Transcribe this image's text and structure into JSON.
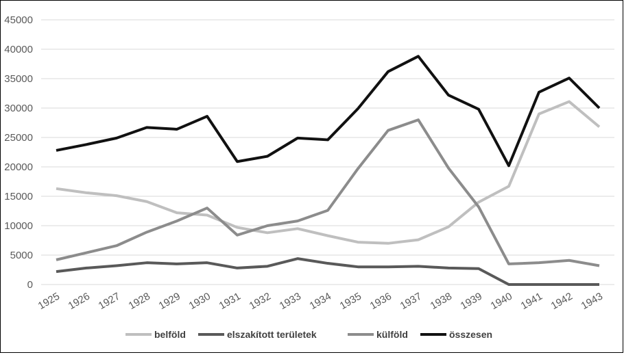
{
  "chart_data": {
    "type": "line",
    "categories": [
      "1925",
      "1926",
      "1927",
      "1928",
      "1929",
      "1930",
      "1931",
      "1932",
      "1933",
      "1934",
      "1935",
      "1936",
      "1937",
      "1938",
      "1939",
      "1940",
      "1941",
      "1942",
      "1943"
    ],
    "series": [
      {
        "name": "belföld",
        "color": "#bfbfbf",
        "values": [
          16300,
          15600,
          15100,
          14100,
          12200,
          11800,
          9700,
          8800,
          9500,
          8300,
          7200,
          7000,
          7600,
          9800,
          14000,
          16700,
          29000,
          31100,
          26800
        ]
      },
      {
        "name": "elszakított területek",
        "color": "#595959",
        "values": [
          2200,
          2800,
          3200,
          3700,
          3500,
          3700,
          2800,
          3100,
          4400,
          3600,
          3000,
          3000,
          3100,
          2800,
          2700,
          0,
          0,
          0,
          0
        ]
      },
      {
        "name": "külföld",
        "color": "#8c8c8c",
        "values": [
          4200,
          5400,
          6600,
          8900,
          10800,
          13000,
          8400,
          10000,
          10800,
          12600,
          19700,
          26200,
          28000,
          19800,
          13200,
          3500,
          3700,
          4100,
          3200
        ]
      },
      {
        "name": "összesen",
        "color": "#111111",
        "values": [
          22800,
          23800,
          24900,
          26700,
          26400,
          28600,
          20900,
          21800,
          24900,
          24600,
          29900,
          36200,
          38800,
          32200,
          29800,
          20200,
          32700,
          35100,
          30000
        ]
      }
    ],
    "ylim": [
      0,
      45000
    ],
    "yticks": [
      0,
      5000,
      10000,
      15000,
      20000,
      25000,
      30000,
      35000,
      40000,
      45000
    ],
    "grid": true,
    "legend": "bottom"
  }
}
